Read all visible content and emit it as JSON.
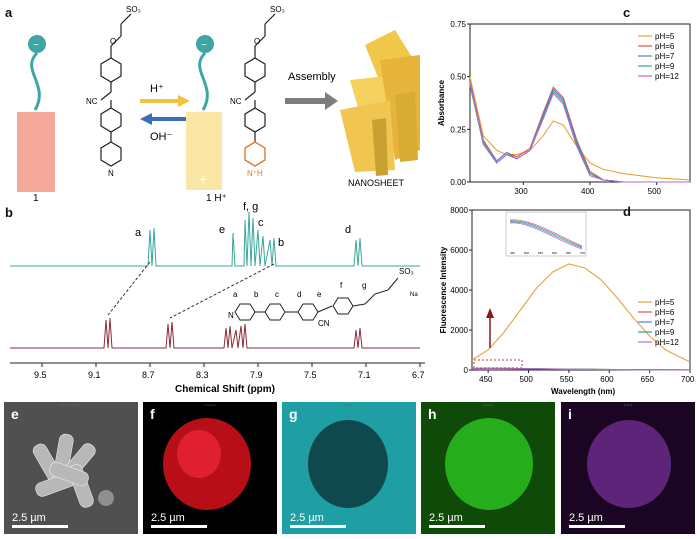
{
  "panels": {
    "a": {
      "letter": "a",
      "mol1": "1",
      "mol2": "1 H⁺",
      "sheet": "NANOSHEET",
      "acid": "H⁺",
      "base": "OH⁻",
      "assembly": "Assembly",
      "nc": "NC",
      "so3": "SO₃",
      "minus": "−",
      "plus": "+",
      "n": "N",
      "nh": "N⁺H"
    },
    "b": {
      "letter": "b",
      "xlabel": "Chemical Shift (ppm)",
      "ticks": [
        "9.5",
        "9.1",
        "8.7",
        "8.3",
        "7.9",
        "7.5",
        "7.1",
        "6.7"
      ],
      "peak_labels": [
        "a",
        "f, g",
        "e",
        "c",
        "b",
        "d"
      ],
      "struct_labels": [
        "a",
        "b",
        "c",
        "d",
        "e",
        "f",
        "g"
      ],
      "struct_n": "N",
      "struct_cn": "CN",
      "struct_so3": "SO₃",
      "struct_na": "Na"
    },
    "c": {
      "letter": "c",
      "xlabel": "Wavelength (nm)",
      "ylabel": "Absorbance"
    },
    "d": {
      "letter": "d",
      "xlabel": "Wavelength (nm)",
      "ylabel": "Fluorescence Intensity",
      "inset_ticks": [
        "450",
        "500",
        "550",
        "600",
        "650",
        "700"
      ]
    },
    "em": [
      {
        "letter": "e",
        "caption": "Electron Image 5",
        "scale": "2.5 µm",
        "bg": "#505050"
      },
      {
        "letter": "f",
        "caption": "C Kα1,2",
        "scale": "2.5 µm",
        "bg": "#cc0f1a"
      },
      {
        "letter": "g",
        "caption": "N Kα1",
        "scale": "2.5 µm",
        "bg": "#1aa3a8"
      },
      {
        "letter": "h",
        "caption": "S Kα1,2",
        "scale": "2.5 µm",
        "bg": "#29b81f"
      },
      {
        "letter": "i",
        "caption": "O Kα1",
        "scale": "2.5 µm",
        "bg": "#6a2a8a"
      }
    ]
  },
  "chart_data": [
    {
      "type": "line",
      "panel": "c",
      "xlabel": "Wavelength (nm)",
      "ylabel": "Absorbance",
      "xlim": [
        220,
        550
      ],
      "ylim": [
        0,
        0.75
      ],
      "xticks": [
        300,
        400,
        500
      ],
      "yticks": [
        0.0,
        0.25,
        0.5,
        0.75
      ],
      "legend_position": "top-right",
      "x": [
        220,
        240,
        260,
        275,
        290,
        310,
        330,
        345,
        360,
        380,
        400,
        420,
        450,
        500,
        550
      ],
      "series": [
        {
          "name": "pH=5",
          "color": "#e8a33c",
          "values": [
            0.5,
            0.22,
            0.15,
            0.13,
            0.13,
            0.15,
            0.22,
            0.29,
            0.27,
            0.17,
            0.09,
            0.06,
            0.04,
            0.02,
            0.01
          ]
        },
        {
          "name": "pH=6",
          "color": "#e0584a",
          "values": [
            0.48,
            0.2,
            0.1,
            0.14,
            0.12,
            0.16,
            0.33,
            0.45,
            0.4,
            0.2,
            0.05,
            0.01,
            0.0,
            0.0,
            0.0
          ]
        },
        {
          "name": "pH=7",
          "color": "#4a84d8",
          "values": [
            0.47,
            0.19,
            0.1,
            0.14,
            0.11,
            0.15,
            0.32,
            0.44,
            0.39,
            0.19,
            0.04,
            0.01,
            0.0,
            0.0,
            0.0
          ]
        },
        {
          "name": "pH=9",
          "color": "#2aa88a",
          "values": [
            0.46,
            0.18,
            0.09,
            0.13,
            0.11,
            0.15,
            0.31,
            0.43,
            0.38,
            0.18,
            0.04,
            0.01,
            0.0,
            0.0,
            0.0
          ]
        },
        {
          "name": "pH=12",
          "color": "#b46ad8",
          "values": [
            0.47,
            0.19,
            0.09,
            0.13,
            0.11,
            0.15,
            0.3,
            0.42,
            0.37,
            0.17,
            0.03,
            0.01,
            0.0,
            0.0,
            0.0
          ]
        }
      ]
    },
    {
      "type": "line",
      "panel": "d",
      "xlabel": "Wavelength (nm)",
      "ylabel": "Fluorescence Intensity",
      "xlim": [
        430,
        700
      ],
      "ylim": [
        0,
        8000
      ],
      "xticks": [
        450,
        500,
        550,
        600,
        650,
        700
      ],
      "yticks": [
        0,
        2000,
        4000,
        6000,
        8000
      ],
      "legend_position": "right",
      "x": [
        430,
        450,
        470,
        490,
        510,
        530,
        550,
        570,
        590,
        610,
        630,
        650,
        670,
        700
      ],
      "series": [
        {
          "name": "pH=5",
          "color": "#e8a33c",
          "values": [
            500,
            1000,
            1900,
            3000,
            4100,
            4900,
            5300,
            5100,
            4500,
            3600,
            2600,
            1700,
            1000,
            400
          ]
        },
        {
          "name": "pH=6",
          "color": "#e0584a",
          "values": [
            80,
            90,
            85,
            75,
            65,
            55,
            45,
            38,
            30,
            24,
            18,
            14,
            10,
            7
          ]
        },
        {
          "name": "pH=7",
          "color": "#4a84d8",
          "values": [
            75,
            85,
            80,
            70,
            60,
            50,
            42,
            35,
            28,
            22,
            17,
            13,
            9,
            6
          ]
        },
        {
          "name": "pH=9",
          "color": "#2aa88a",
          "values": [
            70,
            80,
            76,
            66,
            57,
            48,
            40,
            33,
            27,
            21,
            16,
            12,
            9,
            6
          ]
        },
        {
          "name": "pH=12",
          "color": "#b46ad8",
          "values": [
            65,
            75,
            72,
            63,
            54,
            46,
            38,
            32,
            26,
            20,
            15,
            11,
            8,
            5
          ]
        }
      ]
    }
  ]
}
